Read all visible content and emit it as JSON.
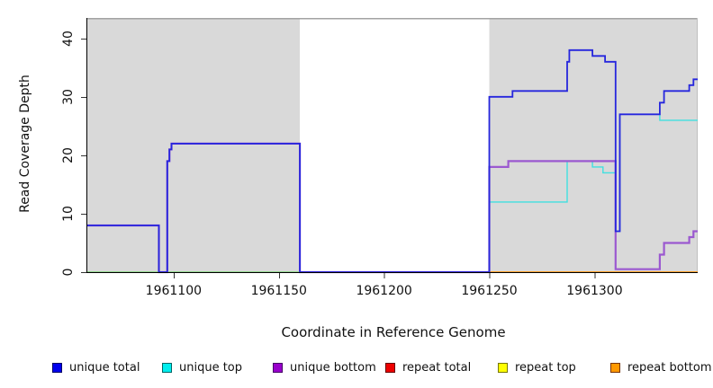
{
  "chart_data": {
    "type": "line",
    "title": "",
    "xlabel": "Coordinate in Reference Genome",
    "ylabel": "Read Coverage Depth",
    "xlim": [
      1961059,
      1961349
    ],
    "ylim": [
      0,
      43.5
    ],
    "x_ticks": [
      "1961100",
      "1961150",
      "1961200",
      "1961250",
      "1961300"
    ],
    "x_tick_values": [
      1961100,
      1961150,
      1961200,
      1961250,
      1961300
    ],
    "y_ticks": [
      "0",
      "10",
      "20",
      "30",
      "40"
    ],
    "y_tick_values": [
      0,
      10,
      20,
      30,
      40
    ],
    "grid": false,
    "legend_position": "bottom",
    "background_regions": [
      {
        "name": "shaded-region-left",
        "start": 1961059,
        "end": 1961160,
        "color": "#d9d9d9"
      },
      {
        "name": "unshaded-gap",
        "start": 1961160,
        "end": 1961250,
        "color": "#ffffff"
      },
      {
        "name": "shaded-region-right",
        "start": 1961250,
        "end": 1961349,
        "color": "#d9d9d9"
      }
    ],
    "series": [
      {
        "name": "repeat total",
        "color": "#e00000",
        "width": 1.2,
        "decorative": false,
        "steps": [
          [
            1961059,
            0
          ],
          [
            1961349,
            0
          ]
        ]
      },
      {
        "name": "repeat top",
        "color": "#f0f000",
        "width": 1.2,
        "decorative": false,
        "steps": [
          [
            1961059,
            0
          ],
          [
            1961349,
            0
          ]
        ]
      },
      {
        "name": "repeat bottom",
        "color": "#ff9912",
        "width": 1.6,
        "decorative": false,
        "steps": [
          [
            1961059,
            0
          ],
          [
            1961349,
            0
          ]
        ]
      },
      {
        "name": "unique top",
        "color": "#40e0e0",
        "width": 1.4,
        "decorative": false,
        "steps": [
          [
            1961059,
            0
          ],
          [
            1961250,
            12
          ],
          [
            1961287,
            19
          ],
          [
            1961299,
            18
          ],
          [
            1961304,
            17
          ],
          [
            1961310,
            7
          ],
          [
            1961312,
            27
          ],
          [
            1961331,
            26
          ],
          [
            1961349,
            26
          ]
        ]
      },
      {
        "name": "zero overlap blend (unique top + repeat top)",
        "color": "#94da8e",
        "width": 1.4,
        "decorative": true,
        "steps": [
          [
            1961059,
            0
          ],
          [
            1961250,
            0
          ]
        ]
      },
      {
        "name": "unique bottom",
        "color": "#9b59d0",
        "width": 2.2,
        "decorative": false,
        "steps": [
          [
            1961059,
            8
          ],
          [
            1961093,
            0
          ],
          [
            1961097,
            19
          ],
          [
            1961098,
            21
          ],
          [
            1961099,
            22
          ],
          [
            1961160,
            0
          ],
          [
            1961250,
            18
          ],
          [
            1961259,
            19
          ],
          [
            1961310,
            0.5
          ],
          [
            1961331,
            3
          ],
          [
            1961333,
            5
          ],
          [
            1961345,
            6
          ],
          [
            1961347,
            7
          ],
          [
            1961349,
            7
          ]
        ]
      },
      {
        "name": "unique total",
        "color": "#2626dd",
        "width": 1.8,
        "decorative": false,
        "steps": [
          [
            1961059,
            8
          ],
          [
            1961093,
            0
          ],
          [
            1961097,
            19
          ],
          [
            1961098,
            21
          ],
          [
            1961099,
            22
          ],
          [
            1961160,
            0
          ],
          [
            1961250,
            30
          ],
          [
            1961261,
            31
          ],
          [
            1961287,
            36
          ],
          [
            1961288,
            38
          ],
          [
            1961299,
            37
          ],
          [
            1961305,
            36
          ],
          [
            1961310,
            7
          ],
          [
            1961312,
            27
          ],
          [
            1961331,
            29
          ],
          [
            1961333,
            31
          ],
          [
            1961345,
            32
          ],
          [
            1961347,
            33
          ],
          [
            1961349,
            33
          ]
        ]
      }
    ]
  },
  "legend": {
    "items": [
      {
        "label": "unique total",
        "fill": "#0000ee",
        "border": "#000066"
      },
      {
        "label": "unique top",
        "fill": "#00eeee",
        "border": "#006666"
      },
      {
        "label": "unique bottom",
        "fill": "#9900cc",
        "border": "#440066"
      },
      {
        "label": "repeat total",
        "fill": "#ee0000",
        "border": "#660000"
      },
      {
        "label": "repeat top",
        "fill": "#ffff00",
        "border": "#777700"
      },
      {
        "label": "repeat bottom",
        "fill": "#ff9900",
        "border": "#773300"
      }
    ]
  }
}
